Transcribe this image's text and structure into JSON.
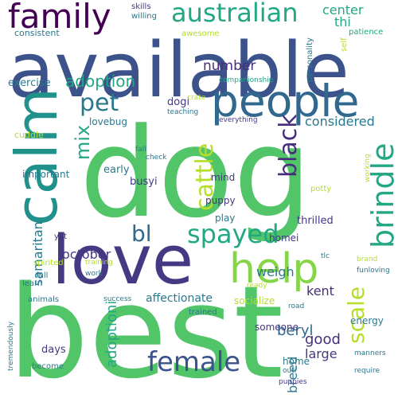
{
  "palette": {
    "green": "#52c569",
    "lightgreen": "#86d549",
    "yellowgreen": "#b5de2b",
    "blue": "#3b528b",
    "teal": "#21918c",
    "darkteal": "#2a788e",
    "aqua": "#22a884",
    "purple": "#472d7b",
    "indigo": "#443983",
    "darkpurple": "#440154",
    "slate": "#31688e"
  },
  "words": [
    {
      "id": "best",
      "text": "best",
      "color": "green"
    },
    {
      "id": "dog",
      "text": "dog",
      "color": "green"
    },
    {
      "id": "available",
      "text": "available",
      "color": "blue"
    },
    {
      "id": "calm",
      "text": "calm",
      "color": "teal"
    },
    {
      "id": "love",
      "text": "love",
      "color": "indigo"
    },
    {
      "id": "people",
      "text": "people",
      "color": "slate"
    },
    {
      "id": "family",
      "text": "family",
      "color": "darkpurple"
    },
    {
      "id": "australian",
      "text": "australian",
      "color": "aqua"
    },
    {
      "id": "help",
      "text": "help",
      "color": "lightgreen"
    },
    {
      "id": "female",
      "text": "female",
      "color": "blue"
    },
    {
      "id": "spayed",
      "text": "spayed",
      "color": "aqua"
    },
    {
      "id": "brindle",
      "text": "brindle",
      "color": "aqua"
    },
    {
      "id": "cattle",
      "text": "cattle",
      "color": "yellowgreen"
    },
    {
      "id": "black",
      "text": "black",
      "color": "purple"
    },
    {
      "id": "pet",
      "text": "pet",
      "color": "darkteal"
    },
    {
      "id": "bl",
      "text": "bl",
      "color": "slate"
    },
    {
      "id": "mix",
      "text": "mix",
      "color": "aqua"
    },
    {
      "id": "adoption",
      "text": "adoption",
      "color": "aqua"
    },
    {
      "id": "scale",
      "text": "scale",
      "color": "yellowgreen"
    },
    {
      "id": "adoptioni",
      "text": "adoptioni",
      "color": "aqua"
    },
    {
      "id": "number",
      "text": "number",
      "color": "purple"
    },
    {
      "id": "center",
      "text": "center",
      "color": "aqua"
    },
    {
      "id": "thi",
      "text": "thi",
      "color": "aqua"
    },
    {
      "id": "considered",
      "text": "considered",
      "color": "darkteal"
    },
    {
      "id": "weigh",
      "text": "weigh",
      "color": "darkteal"
    },
    {
      "id": "october",
      "text": "october",
      "color": "indigo"
    },
    {
      "id": "samaritan",
      "text": "samaritan",
      "color": "darkteal"
    },
    {
      "id": "beryl",
      "text": "beryl",
      "color": "slate"
    },
    {
      "id": "kent",
      "text": "kent",
      "color": "purple"
    },
    {
      "id": "good",
      "text": "good",
      "color": "purple"
    },
    {
      "id": "large",
      "text": "large",
      "color": "indigo"
    },
    {
      "id": "breed",
      "text": "breed",
      "color": "darkteal"
    },
    {
      "id": "affectionate",
      "text": "affectionate",
      "color": "darkteal"
    },
    {
      "id": "exercise",
      "text": "exercise",
      "color": "darkteal"
    },
    {
      "id": "dogi",
      "text": "dogi",
      "color": "indigo"
    },
    {
      "id": "lovebug",
      "text": "lovebug",
      "color": "darkteal"
    },
    {
      "id": "early",
      "text": "early",
      "color": "darkteal"
    },
    {
      "id": "busyi",
      "text": "busyi",
      "color": "indigo"
    },
    {
      "id": "puppy",
      "text": "puppy",
      "color": "indigo"
    },
    {
      "id": "play",
      "text": "play",
      "color": "darkteal"
    },
    {
      "id": "mind",
      "text": "mind",
      "color": "indigo"
    },
    {
      "id": "thrilled",
      "text": "thrilled",
      "color": "indigo"
    },
    {
      "id": "homei",
      "text": "homei",
      "color": "indigo"
    },
    {
      "id": "consistent",
      "text": "consistent",
      "color": "darkteal"
    },
    {
      "id": "skills",
      "text": "skills",
      "color": "indigo"
    },
    {
      "id": "willing",
      "text": "willing",
      "color": "darkteal"
    },
    {
      "id": "awesome",
      "text": "awesome",
      "color": "yellowgreen"
    },
    {
      "id": "patience",
      "text": "patience",
      "color": "aqua"
    },
    {
      "id": "personality",
      "text": "personality",
      "color": "darkteal"
    },
    {
      "id": "self",
      "text": "self",
      "color": "yellowgreen"
    },
    {
      "id": "companionship",
      "text": "companionship",
      "color": "aqua"
    },
    {
      "id": "crate",
      "text": "crate",
      "color": "yellowgreen"
    },
    {
      "id": "teaching",
      "text": "teaching",
      "color": "darkteal"
    },
    {
      "id": "everything",
      "text": "everything",
      "color": "indigo"
    },
    {
      "id": "cuddle",
      "text": "cuddle",
      "color": "yellowgreen"
    },
    {
      "id": "fall",
      "text": "fall",
      "color": "darkteal"
    },
    {
      "id": "check",
      "text": "check",
      "color": "darkteal"
    },
    {
      "id": "important",
      "text": "important",
      "color": "darkteal"
    },
    {
      "id": "potty",
      "text": "potty",
      "color": "yellowgreen"
    },
    {
      "id": "working",
      "text": "working",
      "color": "yellowgreen"
    },
    {
      "id": "yet",
      "text": "yet",
      "color": "indigo"
    },
    {
      "id": "spirited",
      "text": "spirited",
      "color": "yellowgreen"
    },
    {
      "id": "training",
      "text": "training",
      "color": "yellowgreen"
    },
    {
      "id": "work",
      "text": "work",
      "color": "darkteal"
    },
    {
      "id": "tlc",
      "text": "tlc",
      "color": "darkteal"
    },
    {
      "id": "learn",
      "text": "learn",
      "color": "darkteal"
    },
    {
      "id": "ready",
      "text": "ready",
      "color": "yellowgreen"
    },
    {
      "id": "brand",
      "text": "brand",
      "color": "yellowgreen"
    },
    {
      "id": "funloving",
      "text": "funloving",
      "color": "darkteal"
    },
    {
      "id": "full",
      "text": "full",
      "color": "darkteal"
    },
    {
      "id": "animals",
      "text": "animals",
      "color": "darkteal"
    },
    {
      "id": "success",
      "text": "success",
      "color": "darkteal"
    },
    {
      "id": "socialize",
      "text": "socialize",
      "color": "yellowgreen"
    },
    {
      "id": "road",
      "text": "road",
      "color": "darkteal"
    },
    {
      "id": "trained",
      "text": "trained",
      "color": "darkteal"
    },
    {
      "id": "energy",
      "text": "energy",
      "color": "darkteal"
    },
    {
      "id": "manners",
      "text": "manners",
      "color": "darkteal"
    },
    {
      "id": "someone",
      "text": "someone",
      "color": "indigo"
    },
    {
      "id": "tremendously",
      "text": "tremendously",
      "color": "darkteal"
    },
    {
      "id": "days",
      "text": "days",
      "color": "indigo"
    },
    {
      "id": "become",
      "text": "become",
      "color": "darkteal"
    },
    {
      "id": "home",
      "text": "home",
      "color": "darkteal"
    },
    {
      "id": "outi",
      "text": "outi",
      "color": "darkteal"
    },
    {
      "id": "require",
      "text": "require",
      "color": "darkteal"
    },
    {
      "id": "puppies",
      "text": "puppies",
      "color": "indigo"
    }
  ]
}
